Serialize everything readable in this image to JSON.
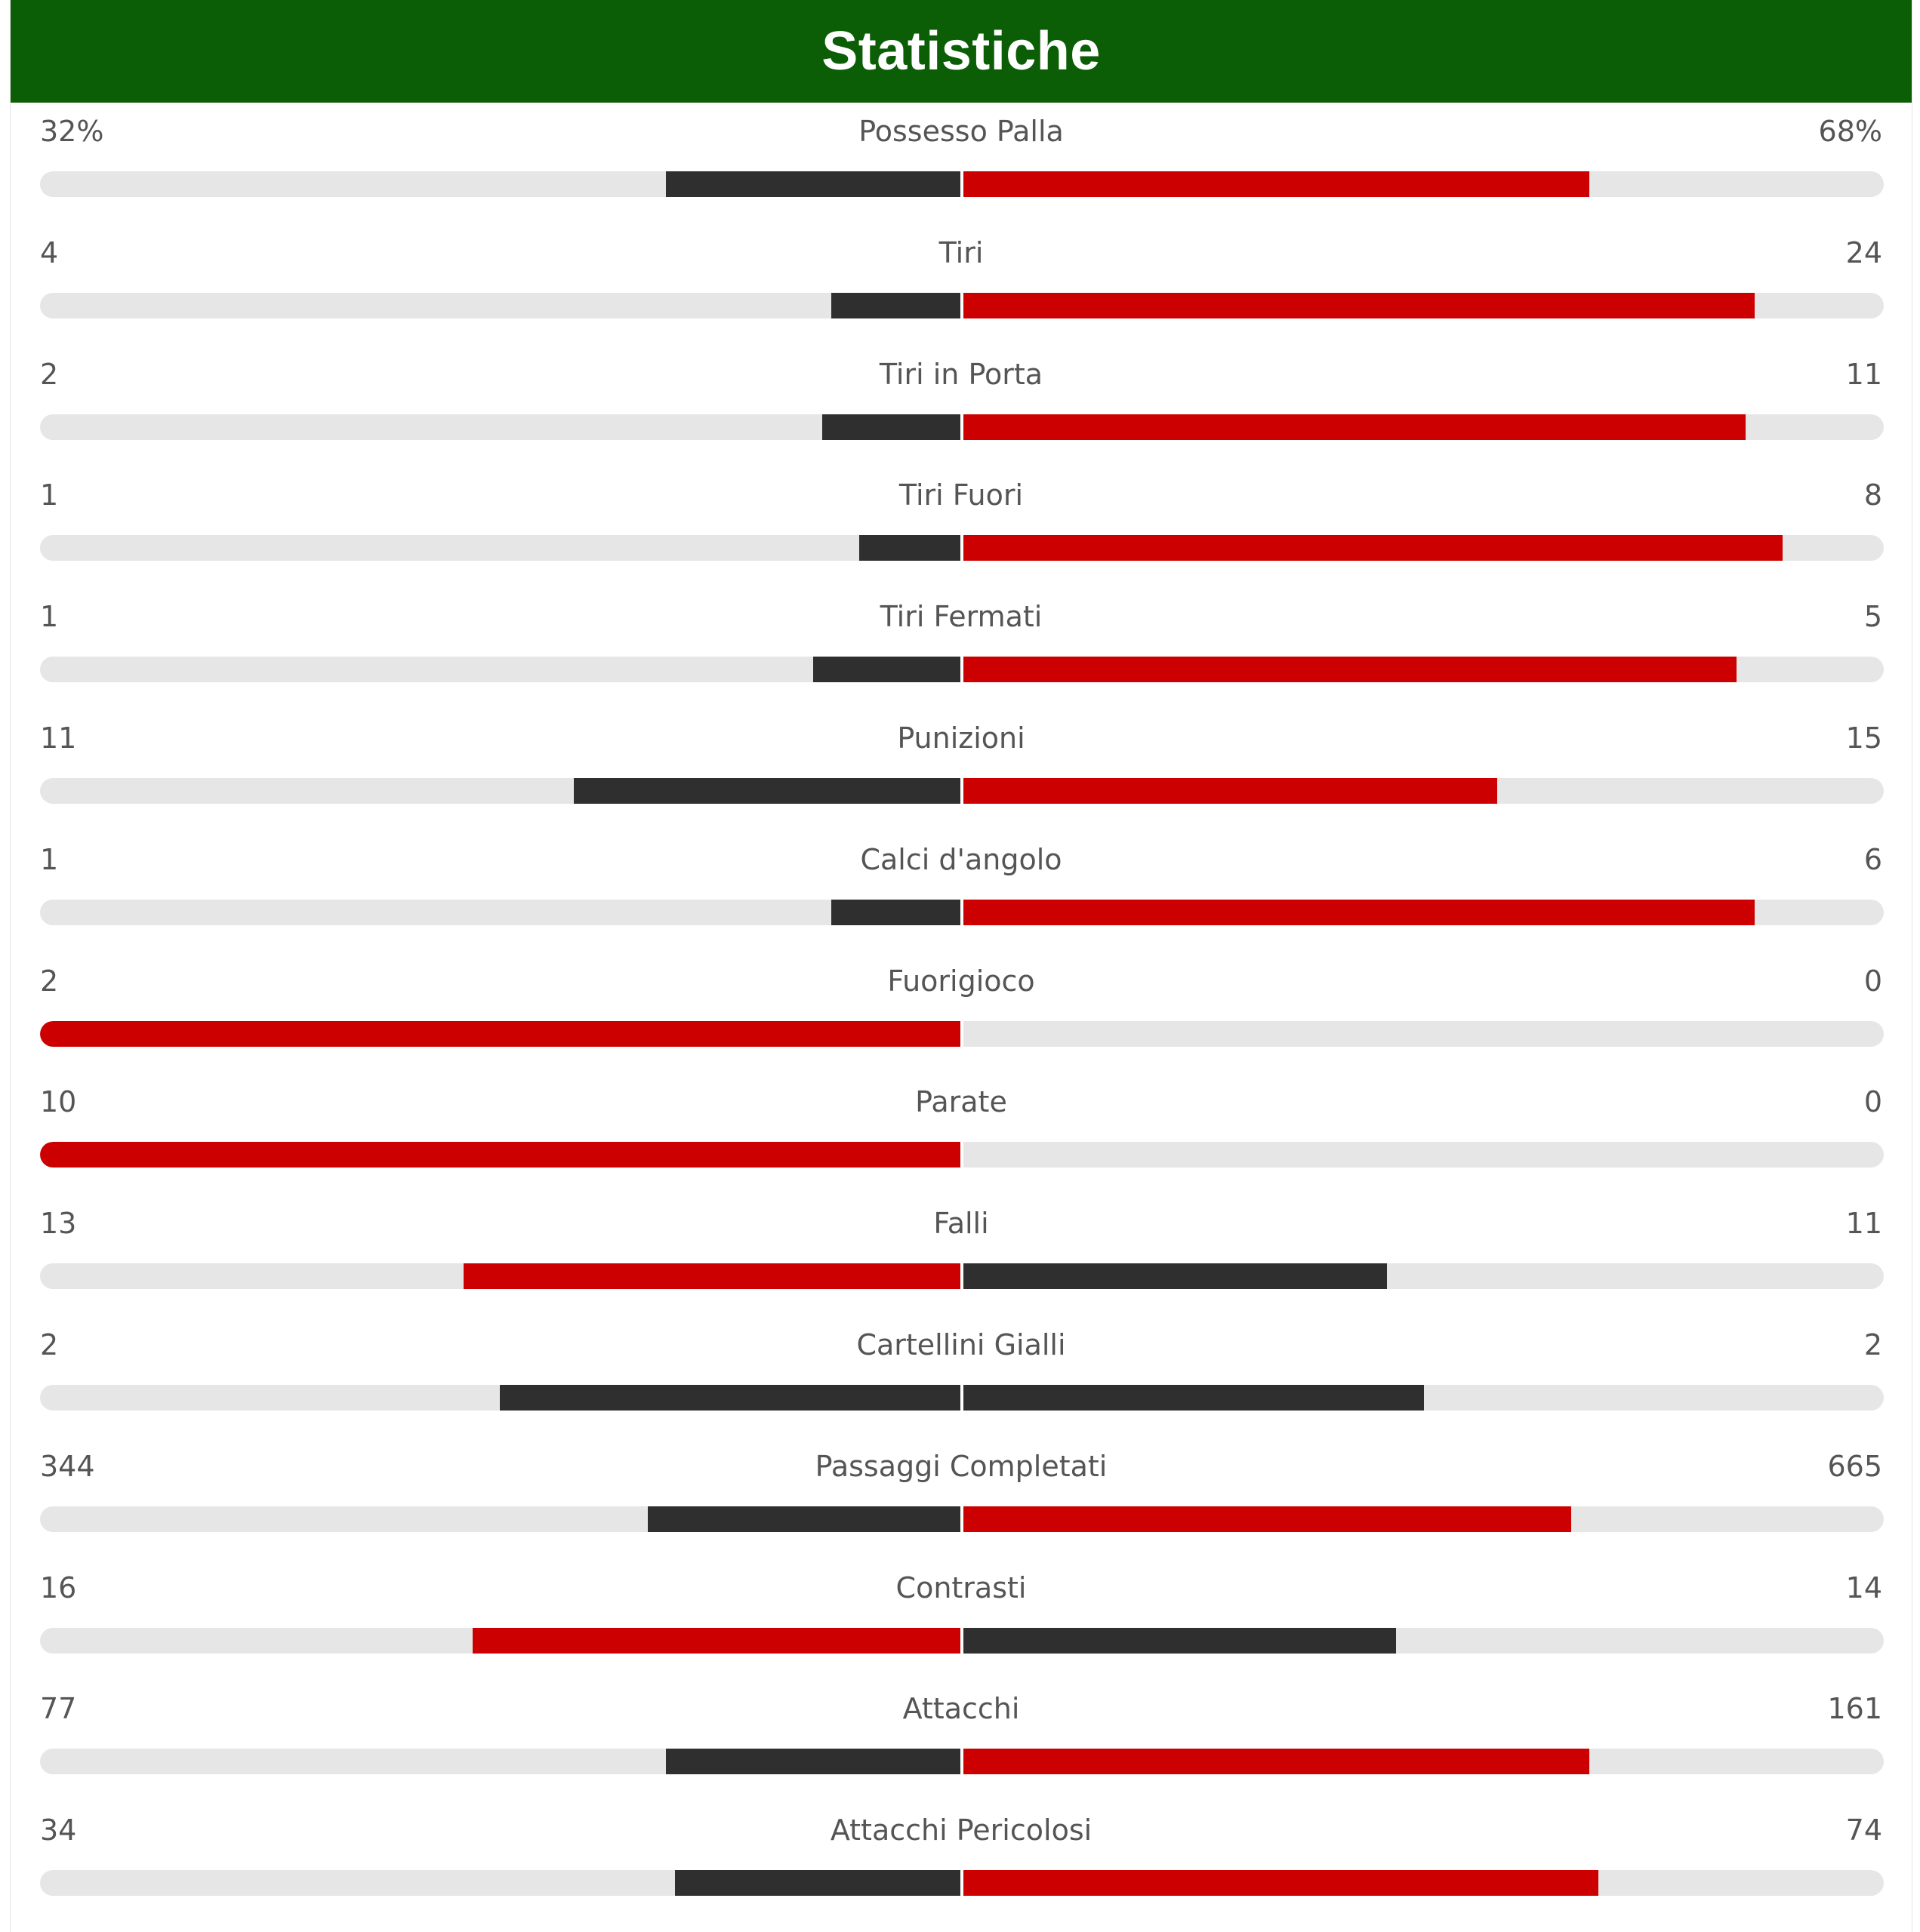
{
  "header": {
    "title": "Statistiche"
  },
  "colors": {
    "header_bg": "#0b5e06",
    "red": "#cc0000",
    "dark": "#2f2f2f",
    "track": "#e6e6e6"
  },
  "stats": [
    {
      "label": "Possesso Palla",
      "left": "32%",
      "right": "68%",
      "left_fill": 0.32,
      "right_fill": 0.68,
      "left_color": "dark",
      "right_color": "red"
    },
    {
      "label": "Tiri",
      "left": "4",
      "right": "24",
      "left_fill": 0.14,
      "right_fill": 0.86,
      "left_color": "dark",
      "right_color": "red"
    },
    {
      "label": "Tiri in Porta",
      "left": "2",
      "right": "11",
      "left_fill": 0.15,
      "right_fill": 0.85,
      "left_color": "dark",
      "right_color": "red"
    },
    {
      "label": "Tiri Fuori",
      "left": "1",
      "right": "8",
      "left_fill": 0.11,
      "right_fill": 0.89,
      "left_color": "dark",
      "right_color": "red"
    },
    {
      "label": "Tiri Fermati",
      "left": "1",
      "right": "5",
      "left_fill": 0.16,
      "right_fill": 0.84,
      "left_color": "dark",
      "right_color": "red"
    },
    {
      "label": "Punizioni",
      "left": "11",
      "right": "15",
      "left_fill": 0.42,
      "right_fill": 0.58,
      "left_color": "dark",
      "right_color": "red"
    },
    {
      "label": "Calci d'angolo",
      "left": "1",
      "right": "6",
      "left_fill": 0.14,
      "right_fill": 0.86,
      "left_color": "dark",
      "right_color": "red"
    },
    {
      "label": "Fuorigioco",
      "left": "2",
      "right": "0",
      "left_fill": 1.0,
      "right_fill": 0.0,
      "left_color": "red",
      "right_color": "dark"
    },
    {
      "label": "Parate",
      "left": "10",
      "right": "0",
      "left_fill": 1.0,
      "right_fill": 0.0,
      "left_color": "red",
      "right_color": "dark"
    },
    {
      "label": "Falli",
      "left": "13",
      "right": "11",
      "left_fill": 0.54,
      "right_fill": 0.46,
      "left_color": "red",
      "right_color": "dark"
    },
    {
      "label": "Cartellini Gialli",
      "left": "2",
      "right": "2",
      "left_fill": 0.5,
      "right_fill": 0.5,
      "left_color": "dark",
      "right_color": "dark"
    },
    {
      "label": "Passaggi Completati",
      "left": "344",
      "right": "665",
      "left_fill": 0.34,
      "right_fill": 0.66,
      "left_color": "dark",
      "right_color": "red"
    },
    {
      "label": "Contrasti",
      "left": "16",
      "right": "14",
      "left_fill": 0.53,
      "right_fill": 0.47,
      "left_color": "red",
      "right_color": "dark"
    },
    {
      "label": "Attacchi",
      "left": "77",
      "right": "161",
      "left_fill": 0.32,
      "right_fill": 0.68,
      "left_color": "dark",
      "right_color": "red"
    },
    {
      "label": "Attacchi Pericolosi",
      "left": "34",
      "right": "74",
      "left_fill": 0.31,
      "right_fill": 0.69,
      "left_color": "dark",
      "right_color": "red"
    }
  ]
}
